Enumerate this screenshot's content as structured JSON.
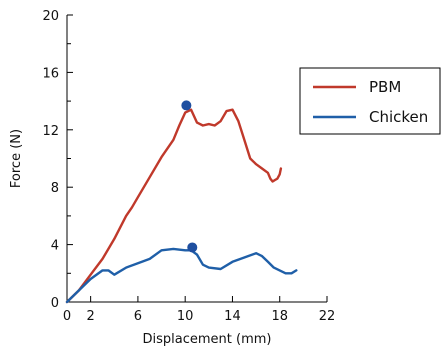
{
  "chart_data": {
    "type": "line",
    "title": "",
    "xlabel": "Displacement (mm)",
    "ylabel": "Force (N)",
    "xlim": [
      0,
      22
    ],
    "ylim": [
      0,
      20
    ],
    "x_ticks": [
      0,
      2,
      6,
      10,
      14,
      18,
      22
    ],
    "y_ticks": [
      0,
      4,
      8,
      12,
      16,
      20
    ],
    "grid": false,
    "legend_position": "right",
    "series": [
      {
        "name": "PBM",
        "color": "#c0392b",
        "x": [
          0,
          1,
          2,
          3,
          4,
          5,
          5.5,
          6,
          7,
          8,
          9,
          9.5,
          10,
          10.5,
          11,
          11.5,
          12,
          12.5,
          13,
          13.5,
          14,
          14.5,
          15,
          15.5,
          16,
          16.5,
          17,
          17.2,
          17.4,
          17.6,
          17.8,
          18.0,
          18.1
        ],
        "y": [
          0,
          0.8,
          1.9,
          3.0,
          4.4,
          6.0,
          6.6,
          7.3,
          8.7,
          10.1,
          11.3,
          12.3,
          13.2,
          13.4,
          12.5,
          12.3,
          12.4,
          12.3,
          12.6,
          13.3,
          13.4,
          12.6,
          11.3,
          10.0,
          9.6,
          9.3,
          9.0,
          8.6,
          8.4,
          8.5,
          8.6,
          8.9,
          9.3
        ]
      },
      {
        "name": "Chicken",
        "color": "#1f5fa8",
        "x": [
          0,
          1,
          2,
          3,
          3.5,
          4,
          5,
          6,
          7,
          8,
          9,
          10,
          10.5,
          11,
          11.5,
          12,
          13,
          14,
          15,
          16,
          16.5,
          17,
          17.5,
          18,
          18.5,
          19,
          19.4
        ],
        "y": [
          0,
          0.8,
          1.6,
          2.2,
          2.2,
          1.9,
          2.4,
          2.7,
          3.0,
          3.6,
          3.7,
          3.6,
          3.6,
          3.3,
          2.6,
          2.4,
          2.3,
          2.8,
          3.1,
          3.4,
          3.2,
          2.8,
          2.4,
          2.2,
          2.0,
          2.0,
          2.2
        ]
      }
    ],
    "markers": [
      {
        "series": "PBM",
        "x": 10.1,
        "y": 13.7
      },
      {
        "series": "Chicken",
        "x": 10.6,
        "y": 3.8
      }
    ]
  }
}
